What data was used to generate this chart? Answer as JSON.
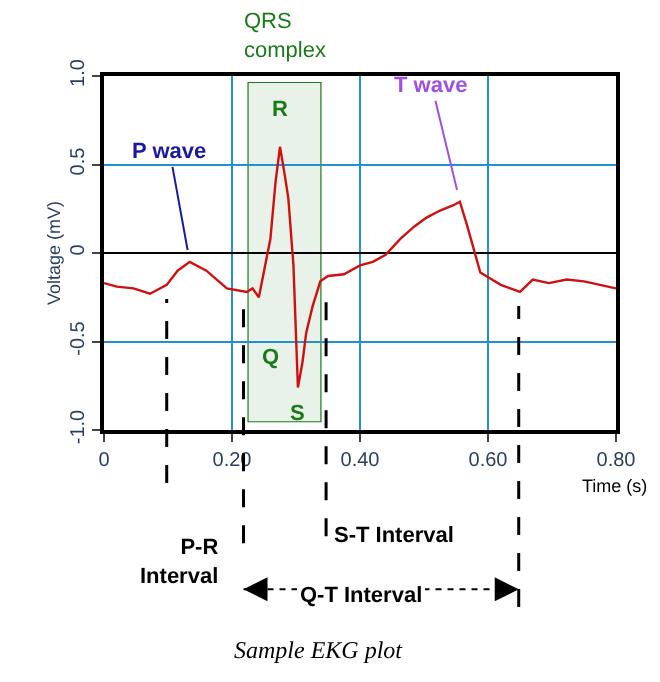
{
  "chart_data": {
    "type": "line",
    "xlabel": "Time (s)",
    "ylabel": "Voltage (mV)",
    "x": [
      0,
      0.02,
      0.046,
      0.072,
      0.098,
      0.115,
      0.134,
      0.16,
      0.192,
      0.223,
      0.232,
      0.242,
      0.26,
      0.268,
      0.275,
      0.282,
      0.288,
      0.296,
      0.303,
      0.31,
      0.316,
      0.326,
      0.338,
      0.35,
      0.375,
      0.4,
      0.42,
      0.44,
      0.463,
      0.485,
      0.504,
      0.525,
      0.546,
      0.556,
      0.567,
      0.588,
      0.62,
      0.65,
      0.67,
      0.695,
      0.723,
      0.75,
      0.775,
      0.8
    ],
    "series": [
      {
        "color": "#d01010",
        "values": [
          -0.17,
          -0.19,
          -0.2,
          -0.23,
          -0.18,
          -0.1,
          -0.05,
          -0.1,
          -0.2,
          -0.22,
          -0.2,
          -0.25,
          0.08,
          0.4,
          0.6,
          0.45,
          0.31,
          -0.07,
          -0.76,
          -0.62,
          -0.45,
          -0.3,
          -0.16,
          -0.13,
          -0.12,
          -0.07,
          -0.05,
          -0.01,
          0.08,
          0.15,
          0.2,
          0.24,
          0.27,
          0.29,
          0.16,
          -0.11,
          -0.18,
          -0.22,
          -0.15,
          -0.17,
          -0.15,
          -0.16,
          -0.18,
          -0.2
        ]
      }
    ],
    "xlim": [
      0,
      0.8
    ],
    "ylim": [
      -1.0,
      1.0
    ],
    "xticks": [
      {
        "value": 0,
        "label": "0"
      },
      {
        "value": 0.2,
        "label": "0.20"
      },
      {
        "value": 0.4,
        "label": "0.40"
      },
      {
        "value": 0.6,
        "label": "0.60"
      },
      {
        "value": 0.8,
        "label": "0.80"
      }
    ],
    "yticks": [
      {
        "value": -1.0,
        "label": "-1.0"
      },
      {
        "value": -0.5,
        "label": "-0.5"
      },
      0,
      {
        "value": 0.5,
        "label": "0.5"
      },
      {
        "value": 1.0,
        "label": "1.0"
      }
    ],
    "grid": true,
    "legend": false,
    "marker": "none",
    "line_style": "solid",
    "bands": [
      {
        "axis": "x",
        "from": 0.226,
        "to": 0.338,
        "label": "QRS complex",
        "color": "#1a7a1a"
      }
    ],
    "ref_lines": [
      {
        "axis": "x",
        "value": 0.098,
        "color": "#000000",
        "line_style": "dashed"
      },
      {
        "axis": "x",
        "value": 0.218,
        "color": "#000000",
        "line_style": "dashed"
      },
      {
        "axis": "x",
        "value": 0.347,
        "color": "#000000",
        "line_style": "dashed"
      },
      {
        "axis": "x",
        "value": 0.648,
        "color": "#000000",
        "line_style": "dashed"
      }
    ],
    "annotations": [
      {
        "text": "P wave",
        "x": 0.134,
        "y": -0.05
      },
      {
        "text": "R",
        "x": 0.275,
        "y": 0.6
      },
      {
        "text": "Q",
        "x": 0.242,
        "y": -0.25
      },
      {
        "text": "S",
        "x": 0.303,
        "y": -0.76
      },
      {
        "text": "T wave",
        "x": 0.556,
        "y": 0.29
      },
      "P-R Interval",
      "S-T Interval",
      "Q-T Interval",
      "Sample EKG plot"
    ]
  }
}
